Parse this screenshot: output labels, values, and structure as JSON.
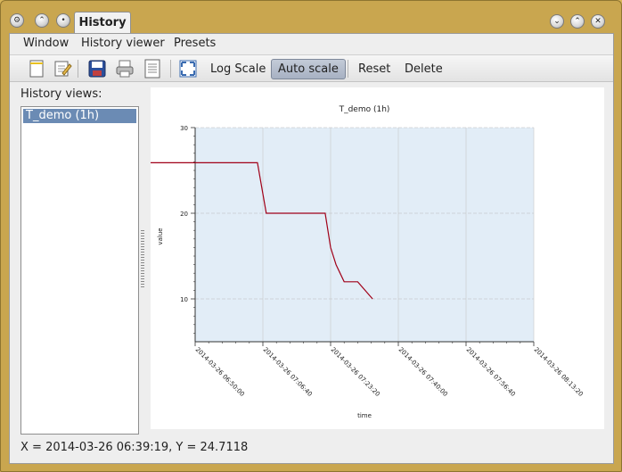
{
  "window": {
    "tab_title": "History"
  },
  "menu": {
    "window": "Window",
    "history_viewer": "History viewer",
    "presets": "Presets"
  },
  "toolbar": {
    "log_scale": "Log Scale",
    "auto_scale": "Auto scale",
    "reset": "Reset",
    "delete": "Delete"
  },
  "sidebar": {
    "label": "History views:",
    "items": [
      "T_demo (1h)"
    ]
  },
  "status": {
    "text": "X = 2014-03-26 06:39:19, Y = 24.7118"
  },
  "colors": {
    "plot_background": "#e2edf7",
    "series_line": "#a00018",
    "selection": "#6b8bb4"
  },
  "chart_data": {
    "type": "line",
    "title": "T_demo (1h)",
    "xlabel": "time",
    "ylabel": "value",
    "ylim": [
      5,
      30
    ],
    "yticks": [
      10,
      20,
      30
    ],
    "xticks": [
      "2014-03-26 06:50:00",
      "2014-03-26 07:06:40",
      "2014-03-26 07:23:20",
      "2014-03-26 07:40:00",
      "2014-03-26 07:56:40",
      "2014-03-26 08:13:20"
    ],
    "xlim_seconds_from_first_tick": [
      0,
      5000
    ],
    "grid": true,
    "series": [
      {
        "x": [
          630,
          5920,
          6050,
          6920,
          7000,
          7080,
          7200,
          7400,
          7620
        ],
        "y": [
          25.9,
          25.9,
          20.0,
          20.0,
          16.0,
          14.0,
          12.0,
          12.0,
          10.0
        ]
      }
    ]
  }
}
